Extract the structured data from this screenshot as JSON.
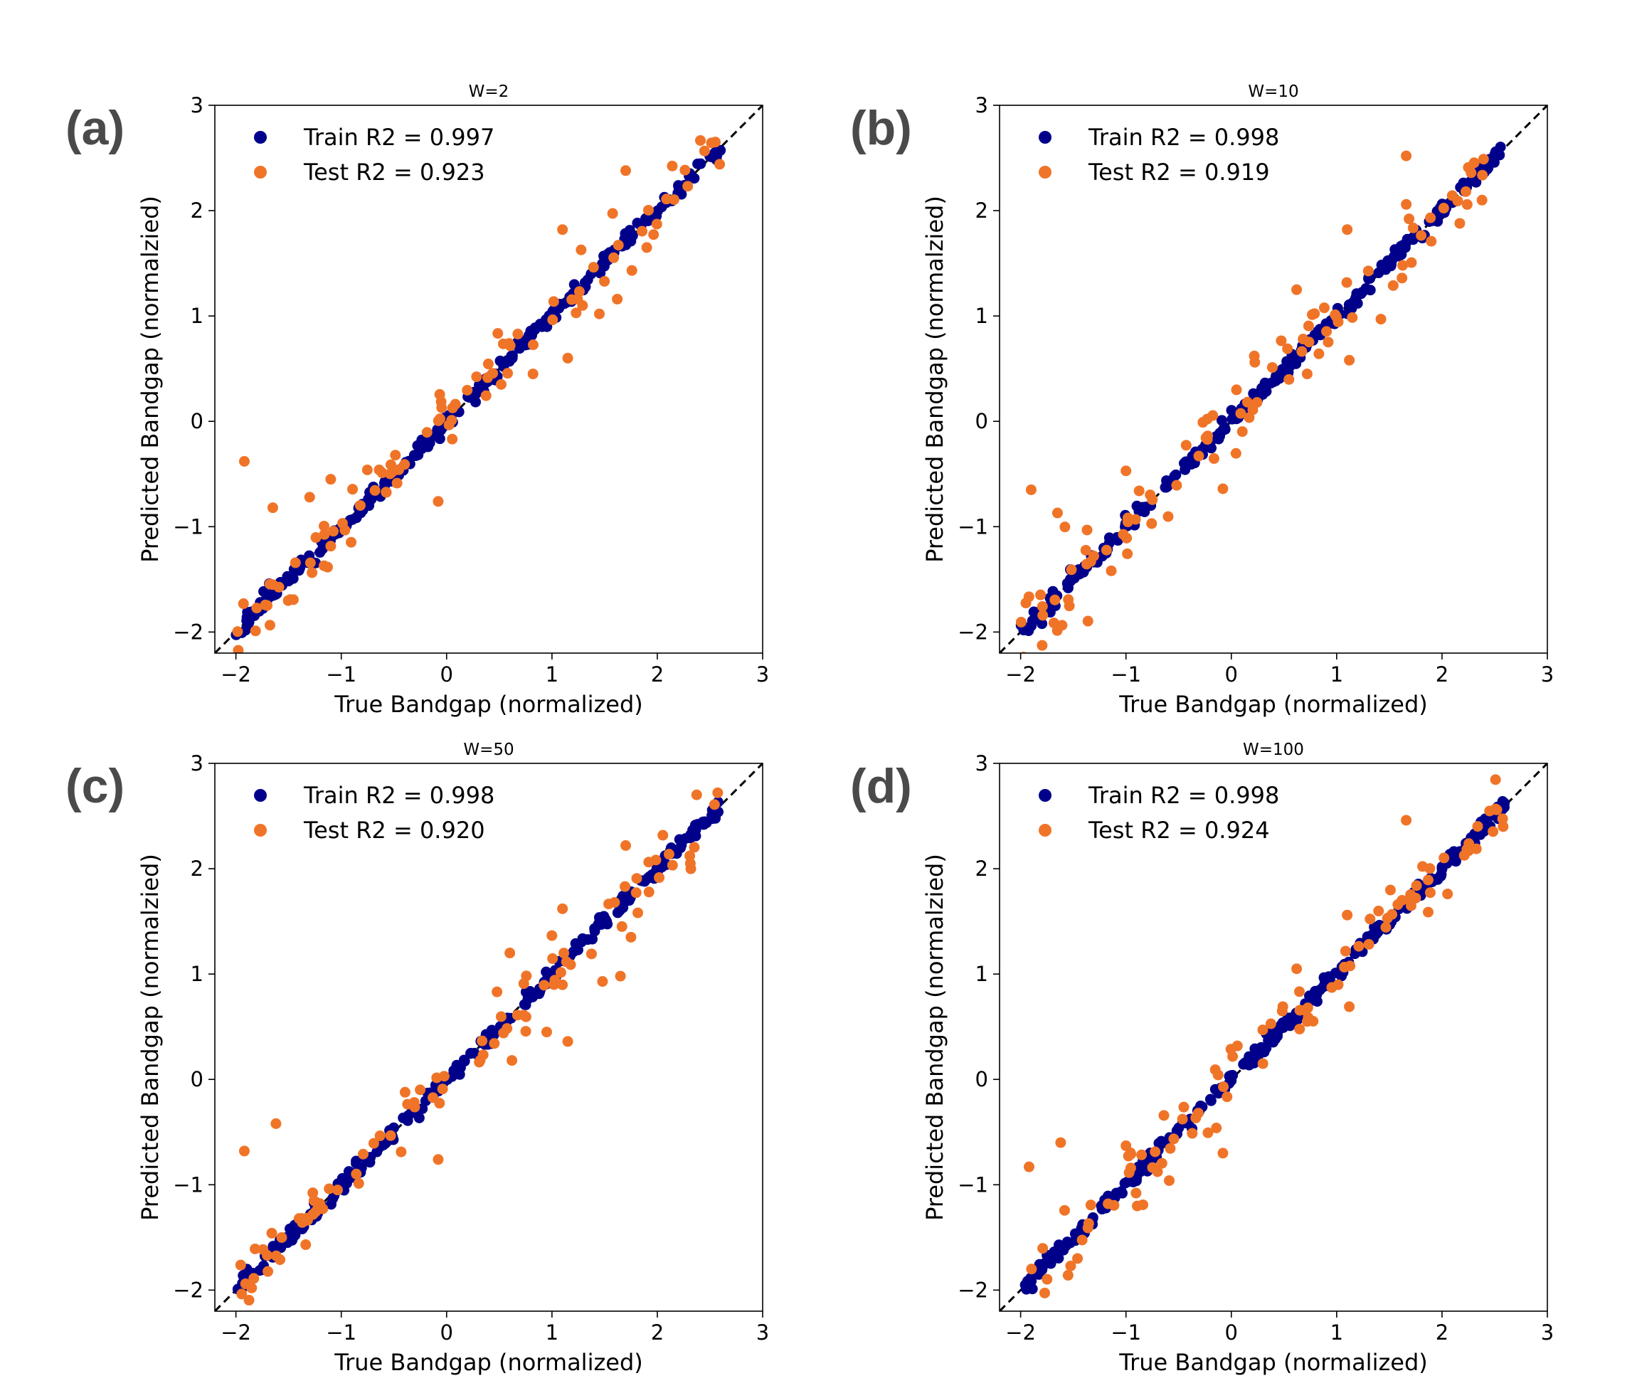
{
  "figure": {
    "colors": {
      "train": "#00008b",
      "test": "#f07428",
      "identity_line": "#000000",
      "panel_letter": "#4a4a4a"
    }
  },
  "chart_data": [
    {
      "type": "scatter",
      "panel_label": "(a)",
      "title": "W=2",
      "xlabel": "True Bandgap (normalized)",
      "ylabel": "Predicted Bandgap (normalzied)",
      "xlim": [
        -2.2,
        3.0
      ],
      "ylim": [
        -2.2,
        3.0
      ],
      "xticks": [
        -2,
        -1,
        0,
        1,
        2,
        3
      ],
      "yticks": [
        -2,
        -1,
        0,
        1,
        2,
        3
      ],
      "xtick_labels": [
        "−2",
        "−1",
        "0",
        "1",
        "2",
        "3"
      ],
      "ytick_labels": [
        "−2",
        "−1",
        "0",
        "1",
        "2",
        "3"
      ],
      "identity_line": true,
      "legend": {
        "position": "top-left",
        "entries": [
          "Train R2 = 0.997",
          "Test R2 = 0.923"
        ]
      },
      "series": [
        {
          "name": "Train R2 = 0.997",
          "color": "#00008b",
          "seed": 11,
          "n": 260,
          "noise": 0.04
        },
        {
          "name": "Test R2 = 0.923",
          "color": "#f07428",
          "seed": 12,
          "n": 95,
          "noise": 0.18,
          "outliers": [
            [
              -1.92,
              -0.38
            ],
            [
              -1.65,
              -0.82
            ],
            [
              -0.08,
              -0.76
            ],
            [
              1.1,
              1.82
            ],
            [
              1.7,
              2.38
            ],
            [
              0.82,
              0.45
            ],
            [
              1.15,
              0.6
            ],
            [
              -1.3,
              -0.72
            ],
            [
              -1.1,
              -0.55
            ],
            [
              1.45,
              1.02
            ],
            [
              1.62,
              1.16
            ],
            [
              1.9,
              1.65
            ]
          ]
        }
      ]
    },
    {
      "type": "scatter",
      "panel_label": "(b)",
      "title": "W=10",
      "xlabel": "True Bandgap (normalized)",
      "ylabel": "Predicted Bandgap (normalzied)",
      "xlim": [
        -2.2,
        3.0
      ],
      "ylim": [
        -2.2,
        3.0
      ],
      "xticks": [
        -2,
        -1,
        0,
        1,
        2,
        3
      ],
      "yticks": [
        -2,
        -1,
        0,
        1,
        2,
        3
      ],
      "xtick_labels": [
        "−2",
        "−1",
        "0",
        "1",
        "2",
        "3"
      ],
      "ytick_labels": [
        "−2",
        "−1",
        "0",
        "1",
        "2",
        "3"
      ],
      "identity_line": true,
      "legend": {
        "position": "top-left",
        "entries": [
          "Train R2 = 0.998",
          "Test R2 = 0.919"
        ]
      },
      "series": [
        {
          "name": "Train R2 = 0.998",
          "color": "#00008b",
          "seed": 21,
          "n": 260,
          "noise": 0.04
        },
        {
          "name": "Test R2 = 0.919",
          "color": "#f07428",
          "seed": 22,
          "n": 95,
          "noise": 0.18,
          "outliers": [
            [
              -1.9,
              -0.65
            ],
            [
              -1.65,
              -0.87
            ],
            [
              -0.08,
              -0.64
            ],
            [
              1.1,
              1.82
            ],
            [
              1.66,
              2.52
            ],
            [
              0.72,
              0.45
            ],
            [
              1.12,
              0.58
            ],
            [
              -1.0,
              -0.47
            ],
            [
              0.62,
              1.25
            ],
            [
              1.62,
              1.36
            ],
            [
              1.42,
              0.97
            ],
            [
              2.38,
              2.1
            ]
          ]
        }
      ]
    },
    {
      "type": "scatter",
      "panel_label": "(c)",
      "title": "W=50",
      "xlabel": "True Bandgap (normalized)",
      "ylabel": "Predicted Bandgap (normalzied)",
      "xlim": [
        -2.2,
        3.0
      ],
      "ylim": [
        -2.2,
        3.0
      ],
      "xticks": [
        -2,
        -1,
        0,
        1,
        2,
        3
      ],
      "yticks": [
        -2,
        -1,
        0,
        1,
        2,
        3
      ],
      "xtick_labels": [
        "−2",
        "−1",
        "0",
        "1",
        "2",
        "3"
      ],
      "ytick_labels": [
        "−2",
        "−1",
        "0",
        "1",
        "2",
        "3"
      ],
      "identity_line": true,
      "legend": {
        "position": "top-left",
        "entries": [
          "Train R2 = 0.998",
          "Test R2 = 0.920"
        ]
      },
      "series": [
        {
          "name": "Train R2 = 0.998",
          "color": "#00008b",
          "seed": 31,
          "n": 260,
          "noise": 0.04
        },
        {
          "name": "Test R2 = 0.920",
          "color": "#f07428",
          "seed": 32,
          "n": 95,
          "noise": 0.18,
          "outliers": [
            [
              -1.92,
              -0.68
            ],
            [
              -1.62,
              -0.42
            ],
            [
              -0.08,
              -0.76
            ],
            [
              1.1,
              1.62
            ],
            [
              1.7,
              2.22
            ],
            [
              0.95,
              0.45
            ],
            [
              1.15,
              0.36
            ],
            [
              0.62,
              0.18
            ],
            [
              1.48,
              0.93
            ],
            [
              1.65,
              0.98
            ],
            [
              1.75,
              1.35
            ],
            [
              0.6,
              1.2
            ]
          ]
        }
      ]
    },
    {
      "type": "scatter",
      "panel_label": "(d)",
      "title": "W=100",
      "xlabel": "True Bandgap (normalized)",
      "ylabel": "Predicted Bandgap (normalzied)",
      "xlim": [
        -2.2,
        3.0
      ],
      "ylim": [
        -2.2,
        3.0
      ],
      "xticks": [
        -2,
        -1,
        0,
        1,
        2,
        3
      ],
      "yticks": [
        -2,
        -1,
        0,
        1,
        2,
        3
      ],
      "xtick_labels": [
        "−2",
        "−1",
        "0",
        "1",
        "2",
        "3"
      ],
      "ytick_labels": [
        "−2",
        "−1",
        "0",
        "1",
        "2",
        "3"
      ],
      "identity_line": true,
      "legend": {
        "position": "top-left",
        "entries": [
          "Train R2 = 0.998",
          "Test R2 = 0.924"
        ]
      },
      "series": [
        {
          "name": "Train R2 = 0.998",
          "color": "#00008b",
          "seed": 41,
          "n": 260,
          "noise": 0.04
        },
        {
          "name": "Test R2 = 0.924",
          "color": "#f07428",
          "seed": 42,
          "n": 95,
          "noise": 0.18,
          "outliers": [
            [
              -1.92,
              -0.83
            ],
            [
              -1.62,
              -0.6
            ],
            [
              -0.08,
              -0.7
            ],
            [
              1.1,
              1.56
            ],
            [
              1.66,
              2.46
            ],
            [
              0.72,
              0.55
            ],
            [
              1.12,
              0.69
            ],
            [
              -1.0,
              -0.63
            ],
            [
              0.62,
              1.05
            ],
            [
              1.62,
              1.7
            ],
            [
              2.58,
              2.4
            ],
            [
              0.3,
              0.15
            ]
          ]
        }
      ]
    }
  ]
}
